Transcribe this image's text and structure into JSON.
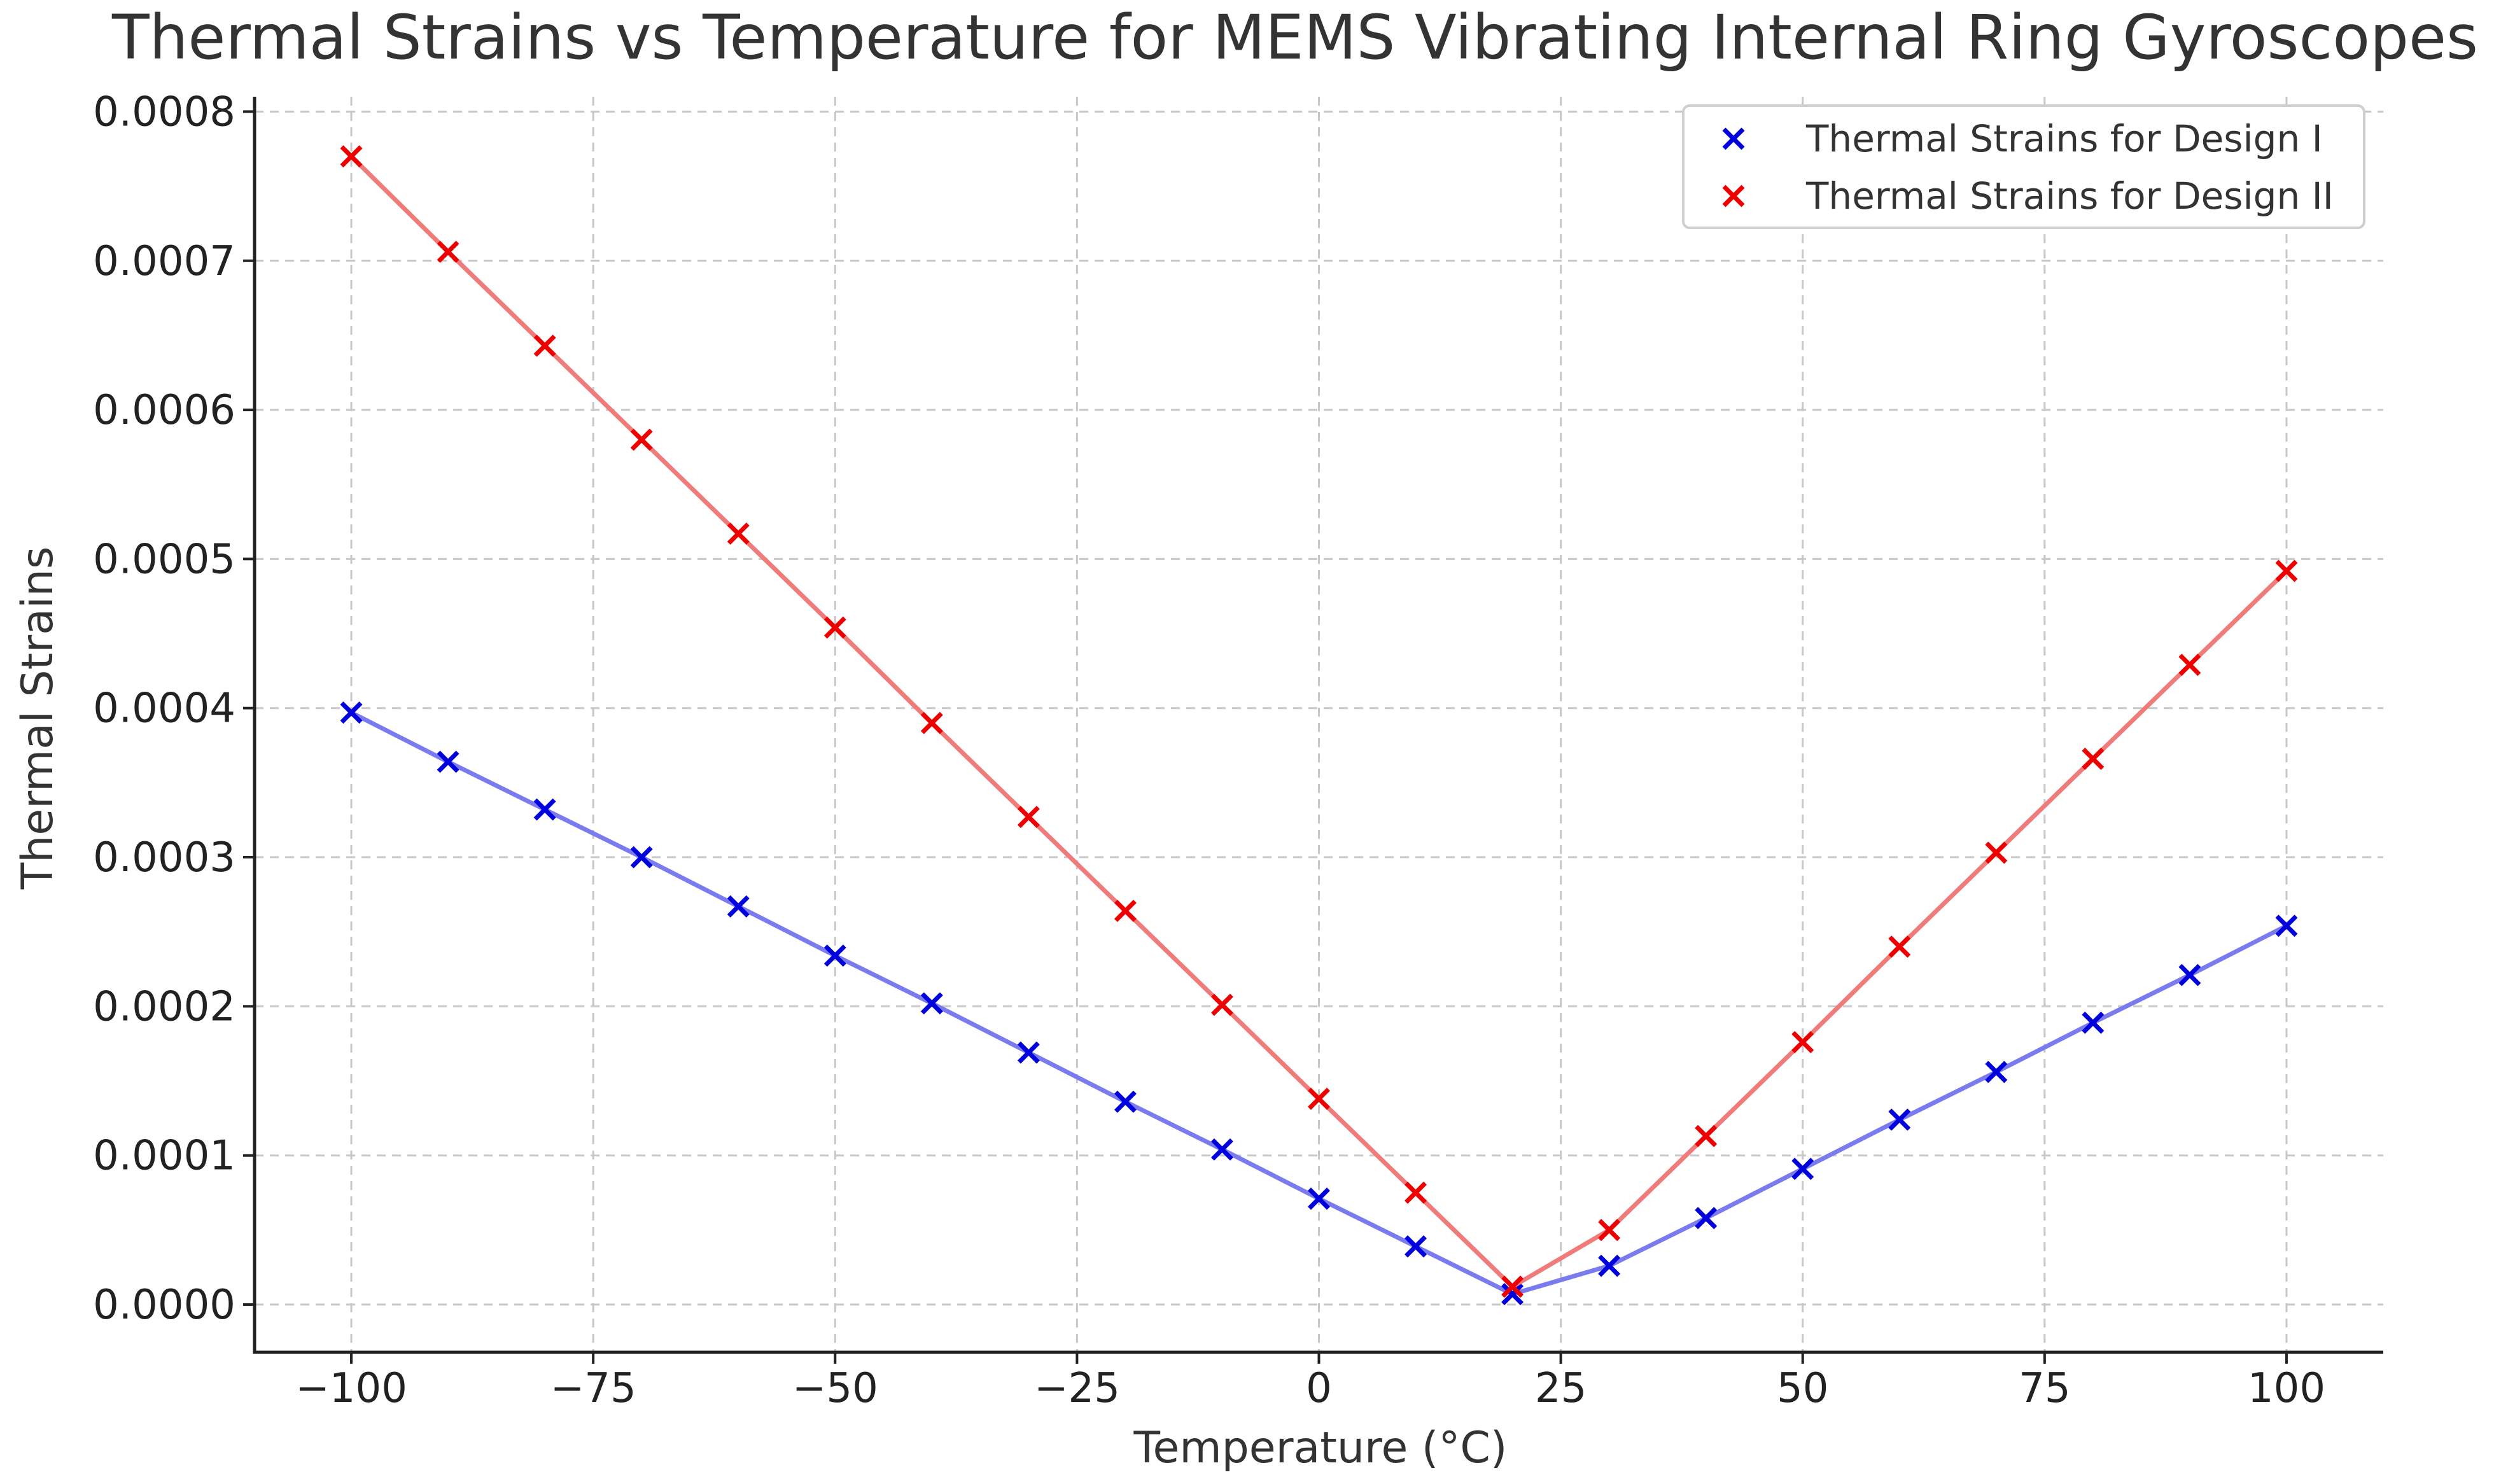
{
  "chart_data": {
    "type": "line",
    "title": "Thermal Strains vs Temperature for MEMS Vibrating Internal Ring Gyroscopes",
    "xlabel": "Temperature (°C)",
    "ylabel": "Thermal Strains",
    "xlim": [
      -110,
      110
    ],
    "ylim": [
      -3.2e-05,
      0.00081
    ],
    "xticks": [
      -100,
      -75,
      -50,
      -25,
      0,
      25,
      50,
      75,
      100
    ],
    "xtick_labels": [
      "−100",
      "−75",
      "−50",
      "−25",
      "0",
      "25",
      "50",
      "75",
      "100"
    ],
    "yticks": [
      0,
      0.0001,
      0.0002,
      0.0003,
      0.0004,
      0.0005,
      0.0006,
      0.0007,
      0.0008
    ],
    "ytick_labels": [
      "0.0000",
      "0.0001",
      "0.0002",
      "0.0003",
      "0.0004",
      "0.0005",
      "0.0006",
      "0.0007",
      "0.0008"
    ],
    "grid": true,
    "legend_position": "top-right",
    "x": [
      -100,
      -90,
      -80,
      -70,
      -60,
      -50,
      -40,
      -30,
      -20,
      -10,
      0,
      10,
      20,
      30,
      40,
      50,
      60,
      70,
      80,
      90,
      100
    ],
    "series": [
      {
        "name": "Thermal Strains for Design I",
        "marker_color": "#0000dd",
        "line_color": "#7b7bf0",
        "values": [
          0.000397,
          0.000364,
          0.000332,
          0.0003,
          0.000267,
          0.000234,
          0.000202,
          0.000169,
          0.000136,
          0.000104,
          7.1e-05,
          3.9e-05,
          7e-06,
          2.6e-05,
          5.8e-05,
          9.1e-05,
          0.000124,
          0.000156,
          0.000189,
          0.000221,
          0.000254
        ]
      },
      {
        "name": "Thermal Strains for Design II",
        "marker_color": "#ee0000",
        "line_color": "#f07b7b",
        "values": [
          0.00077,
          0.000706,
          0.000643,
          0.00058,
          0.000517,
          0.000454,
          0.00039,
          0.000327,
          0.000264,
          0.000201,
          0.000138,
          7.5e-05,
          1.2e-05,
          5e-05,
          0.000113,
          0.000176,
          0.00024,
          0.000303,
          0.000366,
          0.000429,
          0.000492
        ]
      }
    ]
  }
}
